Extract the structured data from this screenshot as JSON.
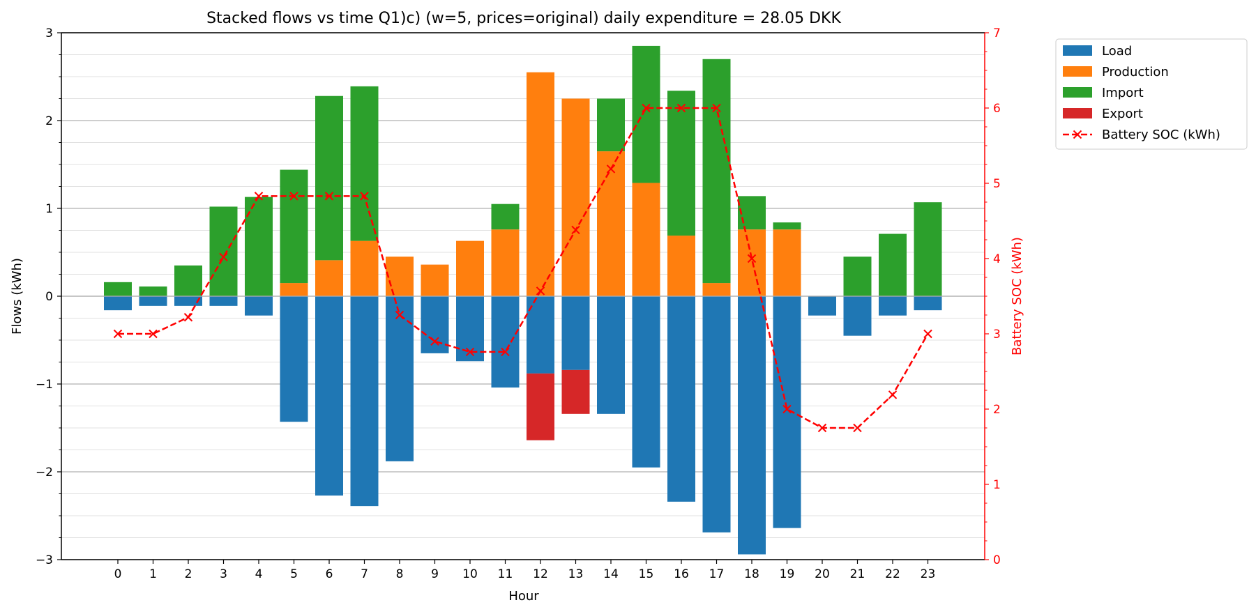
{
  "chart_data": {
    "type": "bar",
    "title": "Stacked flows vs time Q1)c) (w=5, prices=original) daily expenditure = 28.05 DKK",
    "xlabel": "Hour",
    "ylabel": "Flows (kWh)",
    "y2label": "Battery SOC (kWh)",
    "ylim": [
      -3,
      3
    ],
    "y2lim": [
      0,
      7
    ],
    "yticks": [
      "−3",
      "−2",
      "−1",
      "0",
      "1",
      "2",
      "3"
    ],
    "y2ticks": [
      "0",
      "1",
      "2",
      "3",
      "4",
      "5",
      "6",
      "7"
    ],
    "grid": true,
    "legend_position": "outside-top-right",
    "categories": [
      "0",
      "1",
      "2",
      "3",
      "4",
      "5",
      "6",
      "7",
      "8",
      "9",
      "10",
      "11",
      "12",
      "13",
      "14",
      "15",
      "16",
      "17",
      "18",
      "19",
      "20",
      "21",
      "22",
      "23"
    ],
    "series": [
      {
        "name": "Load",
        "color": "#1f77b4",
        "kind": "bar",
        "values": [
          -0.16,
          -0.11,
          -0.11,
          -0.11,
          -0.22,
          -1.43,
          -2.27,
          -2.39,
          -1.88,
          -0.65,
          -0.74,
          -1.04,
          -0.88,
          -0.84,
          -1.34,
          -1.95,
          -2.34,
          -2.69,
          -2.94,
          -2.64,
          -0.22,
          -0.45,
          -0.22,
          -0.16
        ]
      },
      {
        "name": "Production",
        "color": "#ff7f0e",
        "kind": "bar",
        "values": [
          0,
          0,
          0,
          0,
          0,
          0.15,
          0.41,
          0.63,
          0.45,
          0.36,
          0.63,
          0.76,
          2.55,
          2.25,
          1.65,
          1.29,
          0.69,
          0.15,
          0.76,
          0.76,
          0,
          0,
          0,
          0
        ]
      },
      {
        "name": "Import",
        "color": "#2ca02c",
        "kind": "bar",
        "values": [
          0.16,
          0.11,
          0.35,
          1.02,
          1.13,
          1.29,
          1.87,
          1.76,
          0,
          0,
          0,
          0.29,
          0,
          0,
          0.6,
          1.56,
          1.65,
          2.55,
          0.38,
          0.08,
          0,
          0.45,
          0.71,
          1.07
        ]
      },
      {
        "name": "Export",
        "color": "#d62728",
        "kind": "bar",
        "values": [
          0,
          0,
          0,
          0,
          0,
          0,
          0,
          0,
          0,
          0,
          0,
          0,
          -0.76,
          -0.5,
          0,
          0,
          0,
          0,
          0,
          0,
          0,
          0,
          0,
          0
        ]
      },
      {
        "name": "Battery SOC (kWh)",
        "color": "#ff0000",
        "kind": "line",
        "axis": "right",
        "values": [
          3.0,
          3.0,
          3.22,
          4.02,
          4.83,
          4.83,
          4.83,
          4.83,
          3.25,
          2.9,
          2.76,
          2.76,
          3.57,
          4.38,
          5.19,
          6.0,
          6.0,
          6.0,
          4.0,
          2.0,
          1.75,
          1.75,
          2.19,
          3.0
        ]
      }
    ]
  }
}
